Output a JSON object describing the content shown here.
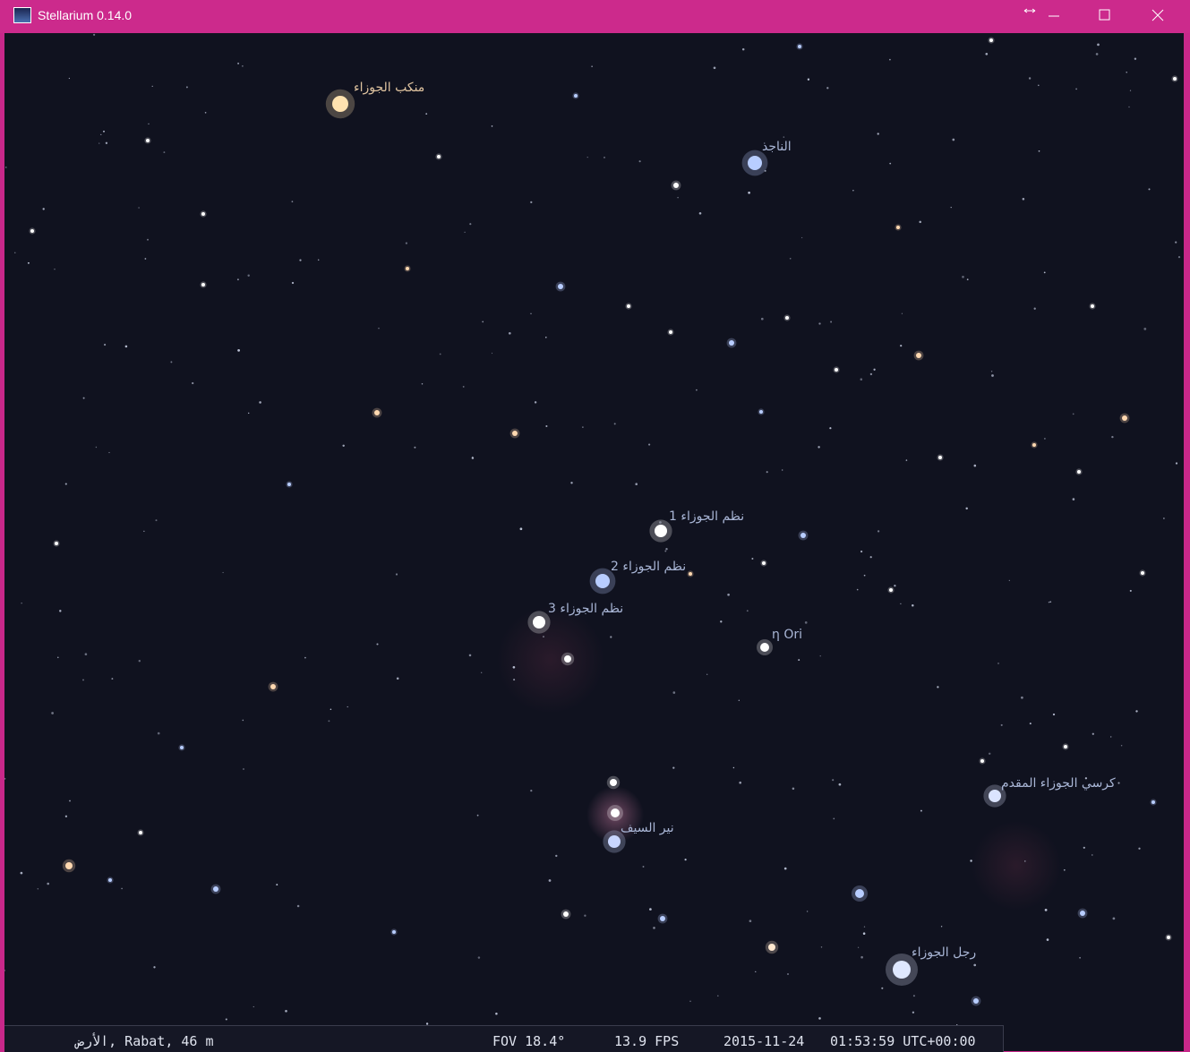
{
  "window": {
    "title": "Stellarium 0.14.0"
  },
  "sky": {
    "labels": [
      "منكب الجوزاء",
      "الناجذ",
      "نظم الجوزاء 1",
      "نظم الجوزاء 2",
      "نظم الجوزاء 3",
      "η Ori",
      "نير السيف",
      "كرسي الجوزاء المقدم",
      "رجل الجوزاء"
    ]
  },
  "status_bar": {
    "location": "الأرض, Rabat, 46 m",
    "fov": "FOV 18.4°",
    "fps": "13.9 FPS",
    "date": "2015-11-24",
    "time": "01:53:59 UTC+00:00"
  }
}
